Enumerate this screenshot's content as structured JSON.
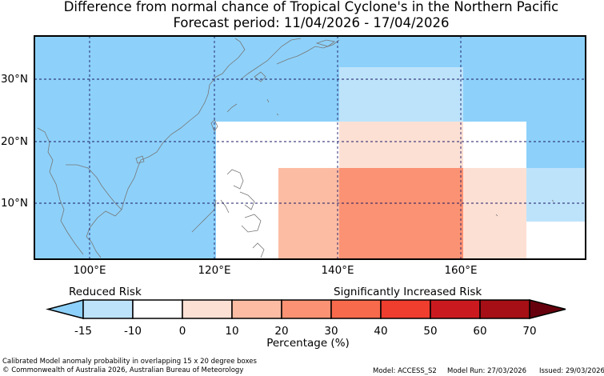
{
  "title_line1": "Difference from normal chance of Tropical Cyclone's in the Northern Pacific",
  "title_line2": "Forecast period: 11/04/2026 - 17/04/2026",
  "map": {
    "lon_ticks": [
      "100°E",
      "120°E",
      "140°E",
      "160°E"
    ],
    "lat_ticks": [
      "30°N",
      "20°N",
      "10°N"
    ],
    "colors": {
      "ocean": "#8dd1fa",
      "white": "#ffffff",
      "pale_blue": "#bde3fb",
      "peach": "#fde0d4",
      "salmon": "#fcbca3",
      "coral": "#fb9273",
      "coast": "#777777",
      "grid": "#1a1a66"
    }
  },
  "colorbar": {
    "label_left": "Reduced Risk",
    "label_right": "Significantly Increased Risk",
    "ticks": [
      "-15",
      "-10",
      "0",
      "10",
      "20",
      "30",
      "40",
      "50",
      "60",
      "70"
    ],
    "segment_colors": [
      "#bde3fb",
      "#ffffff",
      "#fde0d4",
      "#fcbca3",
      "#fb9273",
      "#f86a4c",
      "#ef3d2e",
      "#cb1a1f",
      "#a50f15"
    ],
    "low_extend_color": "#8dd1fa",
    "high_extend_color": "#67000d",
    "axis_label": "Percentage (%)"
  },
  "footer": {
    "note": "Calibrated Model anomaly probability in overlapping 15 x 20 degree boxes",
    "copyright": "© Commonwealth of Australia 2026, Australian Bureau of Meteorology",
    "model": "Model: ACCESS_S2",
    "model_run": "Model Run: 27/03/2026",
    "issued": "Issued: 29/03/2026"
  }
}
